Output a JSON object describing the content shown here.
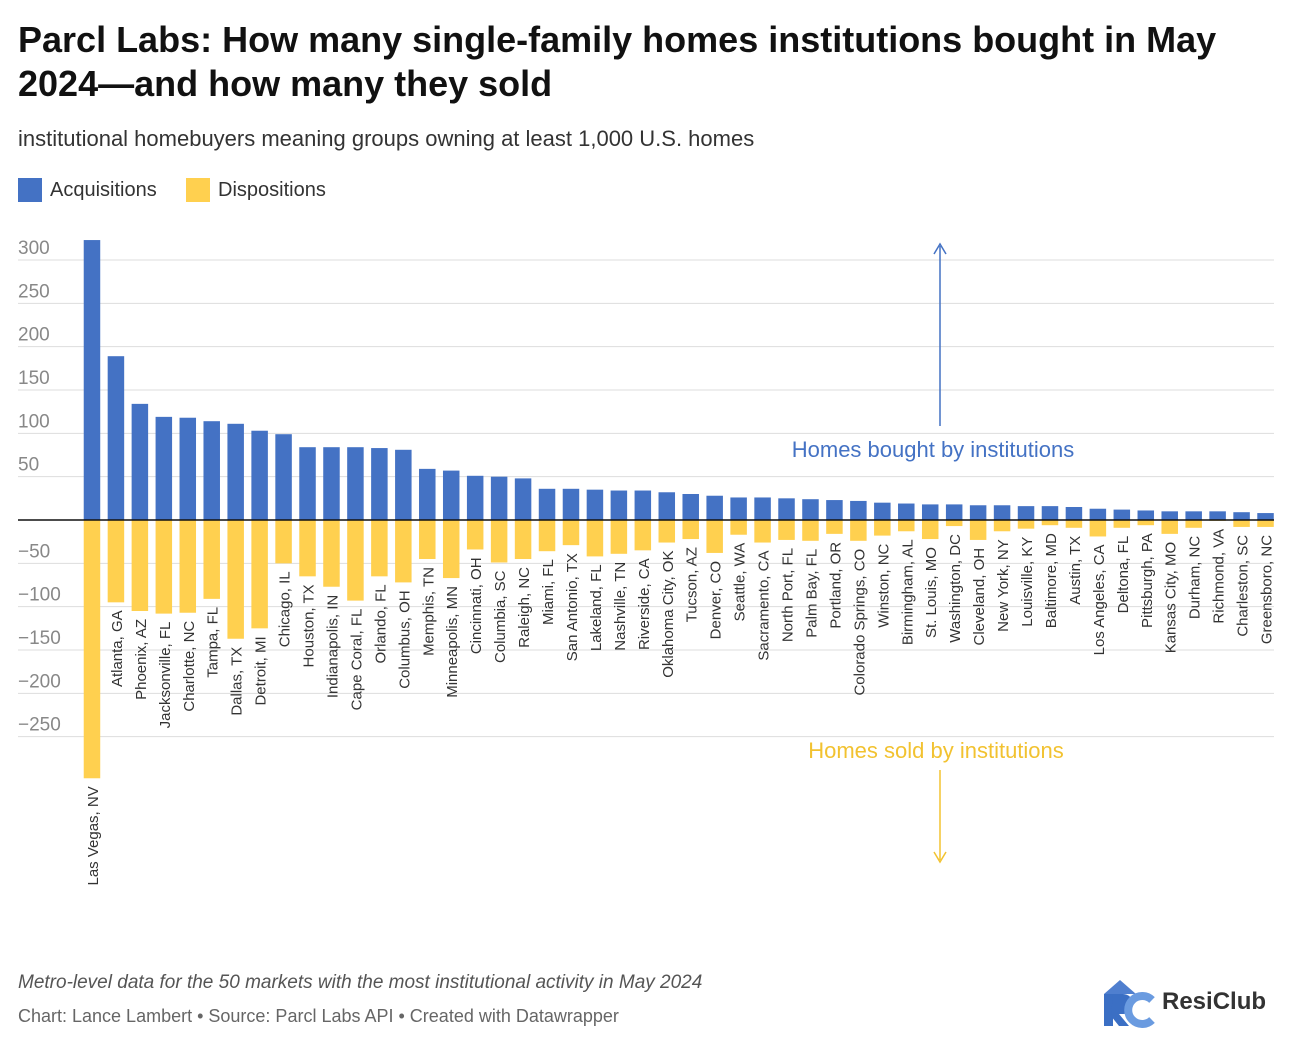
{
  "header": {
    "title": "Parcl Labs: How many single-family homes institutions bought in May 2024—and how many they sold",
    "subtitle": "institutional homebuyers meaning groups owning at least 1,000 U.S. homes"
  },
  "footer": {
    "notes": "Metro-level data for the 50 markets with the most institutional activity in May 2024",
    "byline": "Chart: Lance Lambert • Source: Parcl Labs API • Created with Datawrapper",
    "logo_text": "ResiClub"
  },
  "colors": {
    "acquisitions": "#4472c4",
    "dispositions": "#ffd04f",
    "grid": "#dddddd",
    "zero_line": "#111111",
    "tick": "#888888"
  },
  "chart_data": {
    "type": "bar",
    "title": "Parcl Labs: How many single-family homes institutions bought in May 2024—and how many they sold",
    "xlabel": "",
    "ylabel": "",
    "ylim": [
      -300,
      325
    ],
    "yticks": [
      -250,
      -200,
      -150,
      -100,
      -50,
      50,
      100,
      150,
      200,
      250,
      300
    ],
    "ytick_labels": [
      "−250",
      "−200",
      "−150",
      "−100",
      "−50",
      "50",
      "100",
      "150",
      "200",
      "250",
      "300"
    ],
    "grid": true,
    "legend_position": "top-left",
    "categories": [
      "Las Vegas, NV",
      "Atlanta, GA",
      "Phoenix, AZ",
      "Jacksonville, FL",
      "Charlotte, NC",
      "Tampa, FL",
      "Dallas, TX",
      "Detroit, MI",
      "Chicago, IL",
      "Houston, TX",
      "Indianapolis, IN",
      "Cape Coral, FL",
      "Orlando, FL",
      "Columbus, OH",
      "Memphis, TN",
      "Minneapolis, MN",
      "Cincinnati, OH",
      "Columbia, SC",
      "Raleigh, NC",
      "Miami, FL",
      "San Antonio, TX",
      "Lakeland, FL",
      "Nashville, TN",
      "Riverside, CA",
      "Oklahoma City, OK",
      "Tucson, AZ",
      "Denver, CO",
      "Seattle, WA",
      "Sacramento, CA",
      "North Port, FL",
      "Palm Bay, FL",
      "Portland, OR",
      "Colorado Springs, CO",
      "Winston, NC",
      "Birmingham, AL",
      "St. Louis, MO",
      "Washington, DC",
      "Cleveland, OH",
      "New York, NY",
      "Louisville, KY",
      "Baltimore, MD",
      "Austin, TX",
      "Los Angeles, CA",
      "Deltona, FL",
      "Pittsburgh, PA",
      "Kansas City, MO",
      "Durham, NC",
      "Richmond, VA",
      "Charleston, SC",
      "Greensboro, NC"
    ],
    "series": [
      {
        "name": "Acquisitions",
        "values": [
          323,
          189,
          134,
          119,
          118,
          114,
          111,
          103,
          99,
          84,
          84,
          84,
          83,
          81,
          59,
          57,
          51,
          50,
          48,
          36,
          36,
          35,
          34,
          34,
          32,
          30,
          28,
          26,
          26,
          25,
          24,
          23,
          22,
          20,
          19,
          18,
          18,
          17,
          17,
          16,
          16,
          15,
          13,
          12,
          11,
          10,
          10,
          10,
          9,
          8
        ]
      },
      {
        "name": "Dispositions",
        "values": [
          -298,
          -95,
          -105,
          -108,
          -107,
          -91,
          -137,
          -125,
          -50,
          -65,
          -77,
          -93,
          -65,
          -72,
          -45,
          -67,
          -34,
          -49,
          -45,
          -36,
          -29,
          -42,
          -39,
          -35,
          -26,
          -22,
          -38,
          -17,
          -26,
          -23,
          -24,
          -16,
          -24,
          -18,
          -13,
          -22,
          -7,
          -23,
          -13,
          -10,
          -6,
          -9,
          -19,
          -9,
          -6,
          -16,
          -9,
          -1,
          -8,
          -8
        ]
      }
    ],
    "annotations": {
      "bought": "Homes bought by institutions",
      "sold": "Homes sold by institutions"
    }
  }
}
